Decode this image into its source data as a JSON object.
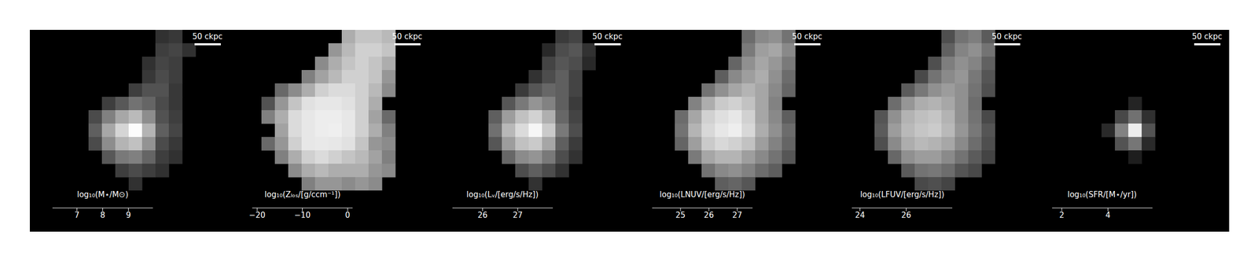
{
  "chart_data": [
    {
      "type": "heatmap",
      "tick_labels": false,
      "annotation": "50 ckpc",
      "colorbar_label": "log₁₀(M⋆/M⊙)",
      "colorbar_range": [
        6.05,
        9.95
      ],
      "colorbar_ticks": [
        7,
        8,
        9
      ],
      "cells": [
        [
          null,
          null,
          null,
          null,
          null,
          null,
          null,
          6.8,
          6.9,
          null,
          null,
          null
        ],
        [
          null,
          null,
          null,
          null,
          null,
          null,
          null,
          7.0,
          7.1,
          6.8,
          null,
          null
        ],
        [
          null,
          null,
          null,
          null,
          null,
          null,
          6.8,
          7.1,
          7.0,
          null,
          null,
          null
        ],
        [
          null,
          null,
          null,
          null,
          null,
          null,
          6.9,
          7.2,
          7.0,
          null,
          null,
          null
        ],
        [
          null,
          null,
          null,
          null,
          null,
          7.0,
          7.3,
          7.3,
          6.9,
          null,
          null,
          null
        ],
        [
          null,
          null,
          null,
          7.0,
          7.4,
          7.8,
          7.6,
          7.2,
          6.9,
          null,
          null,
          null
        ],
        [
          null,
          null,
          7.2,
          8.0,
          8.6,
          8.9,
          8.2,
          7.3,
          7.0,
          null,
          null,
          null
        ],
        [
          null,
          null,
          7.5,
          8.6,
          9.3,
          9.9,
          8.8,
          7.5,
          7.1,
          null,
          null,
          null
        ],
        [
          null,
          null,
          7.2,
          8.2,
          8.8,
          9.0,
          8.3,
          7.2,
          6.9,
          null,
          null,
          null
        ],
        [
          null,
          null,
          null,
          7.4,
          7.9,
          8.0,
          7.6,
          7.0,
          6.8,
          null,
          null,
          null
        ],
        [
          null,
          null,
          null,
          null,
          7.0,
          7.2,
          7.0,
          6.8,
          null,
          null,
          null,
          null
        ],
        [
          null,
          null,
          null,
          null,
          null,
          6.8,
          null,
          null,
          null,
          null,
          null,
          null
        ]
      ]
    },
    {
      "type": "heatmap",
      "tick_labels": false,
      "annotation": "50 ckpc",
      "colorbar_label": "log₁₀(Zₗₒₛ/[g/ccm⁻¹])",
      "colorbar_range": [
        -21.1,
        1.1
      ],
      "colorbar_ticks": [
        {
          "value": -20,
          "label": "−20"
        },
        {
          "value": -10,
          "label": "−10"
        },
        0
      ],
      "cells": [
        [
          null,
          null,
          null,
          null,
          null,
          null,
          -6,
          -4,
          -4,
          -5,
          null,
          null
        ],
        [
          null,
          null,
          null,
          null,
          null,
          -8,
          -5,
          -3,
          -3,
          -4,
          null,
          null
        ],
        [
          null,
          null,
          null,
          null,
          -9,
          -6,
          -4,
          -3,
          -4,
          -6,
          null,
          null
        ],
        [
          null,
          null,
          null,
          -10,
          -7,
          -5,
          -3,
          -3,
          -4,
          -8,
          null,
          null
        ],
        [
          null,
          -12,
          -9,
          -6,
          -3,
          -2,
          -2,
          -3,
          -5,
          -9,
          null,
          null
        ],
        [
          -14,
          -8,
          -4,
          -1.5,
          -1,
          -1,
          -1.5,
          -3,
          -6,
          null,
          null,
          null
        ],
        [
          -10,
          -6,
          -2,
          -1,
          -0.5,
          -0.5,
          -1,
          -3,
          -7,
          -12,
          null,
          null
        ],
        [
          null,
          -7,
          -2,
          -1,
          -0.5,
          -0.3,
          -1,
          -3,
          -6,
          -10,
          null,
          null
        ],
        [
          -12,
          -8,
          -3,
          -1,
          -0.8,
          -1,
          -1.5,
          -4,
          -8,
          -9,
          null,
          null
        ],
        [
          null,
          -10,
          -6,
          -3,
          -2,
          -3,
          -4,
          -5,
          -7,
          -10,
          null,
          null
        ],
        [
          null,
          null,
          -9,
          -6,
          -5,
          -6,
          -6,
          -6,
          -8,
          -9,
          null,
          null
        ],
        [
          null,
          null,
          null,
          -10,
          -8,
          -8,
          -9,
          -8,
          -9,
          null,
          null,
          null
        ]
      ]
    },
    {
      "type": "heatmap",
      "tick_labels": false,
      "annotation": "50 ckpc",
      "colorbar_label": "log₁₀(Lᵥ/[erg/s/Hz])",
      "colorbar_range": [
        25.14,
        28.0
      ],
      "colorbar_ticks": [
        26,
        27
      ],
      "cells": [
        [
          null,
          null,
          null,
          null,
          null,
          null,
          null,
          25.8,
          25.9,
          null,
          null,
          null
        ],
        [
          null,
          null,
          null,
          null,
          null,
          null,
          25.6,
          26.0,
          26.1,
          25.7,
          null,
          null
        ],
        [
          null,
          null,
          null,
          null,
          null,
          null,
          25.9,
          26.1,
          26.0,
          25.6,
          null,
          null
        ],
        [
          null,
          null,
          null,
          null,
          null,
          25.7,
          26.0,
          26.2,
          25.9,
          null,
          null,
          null
        ],
        [
          null,
          null,
          null,
          null,
          25.8,
          26.1,
          26.3,
          26.2,
          25.9,
          null,
          null,
          null
        ],
        [
          null,
          null,
          null,
          26.1,
          26.5,
          26.8,
          26.6,
          26.2,
          25.8,
          null,
          null,
          null
        ],
        [
          null,
          null,
          26.2,
          26.9,
          27.3,
          27.5,
          27.1,
          26.3,
          25.9,
          null,
          null,
          null
        ],
        [
          null,
          null,
          26.4,
          27.2,
          27.6,
          27.9,
          27.4,
          26.5,
          26.0,
          null,
          null,
          null
        ],
        [
          null,
          null,
          26.1,
          26.9,
          27.3,
          27.4,
          27.0,
          26.2,
          25.8,
          null,
          null,
          null
        ],
        [
          null,
          null,
          null,
          26.3,
          26.7,
          26.8,
          26.5,
          26.0,
          25.7,
          null,
          null,
          null
        ],
        [
          null,
          null,
          null,
          null,
          26.0,
          26.2,
          26.0,
          25.7,
          null,
          null,
          null,
          null
        ],
        [
          null,
          null,
          null,
          null,
          null,
          25.7,
          null,
          null,
          null,
          null,
          null,
          null
        ]
      ]
    },
    {
      "type": "heatmap",
      "tick_labels": false,
      "annotation": "50 ckpc",
      "colorbar_label": "log₁₀(LNUV/[erg/s/Hz])",
      "colorbar_range": [
        24.0,
        27.54
      ],
      "colorbar_ticks": [
        25,
        26,
        27
      ],
      "cells": [
        [
          null,
          null,
          null,
          null,
          null,
          null,
          25.5,
          25.9,
          26.0,
          25.6,
          null,
          null
        ],
        [
          null,
          null,
          null,
          null,
          null,
          null,
          25.7,
          26.2,
          26.3,
          25.9,
          null,
          null
        ],
        [
          null,
          null,
          null,
          null,
          null,
          25.4,
          26.0,
          26.3,
          26.1,
          25.7,
          null,
          null
        ],
        [
          null,
          null,
          null,
          null,
          25.3,
          25.9,
          26.2,
          26.4,
          26.0,
          25.5,
          null,
          null
        ],
        [
          null,
          null,
          null,
          25.6,
          26.0,
          26.3,
          26.5,
          26.3,
          25.9,
          25.4,
          null,
          null
        ],
        [
          null,
          null,
          25.8,
          26.4,
          26.8,
          26.9,
          26.7,
          26.3,
          25.8,
          null,
          null,
          null
        ],
        [
          null,
          25.5,
          26.3,
          26.9,
          27.1,
          27.2,
          26.9,
          26.3,
          25.9,
          25.3,
          null,
          null
        ],
        [
          null,
          25.6,
          26.5,
          27.0,
          27.2,
          27.3,
          27.0,
          26.4,
          26.0,
          25.5,
          null,
          null
        ],
        [
          null,
          25.4,
          26.2,
          26.8,
          27.0,
          26.9,
          26.7,
          26.2,
          25.8,
          25.4,
          null,
          null
        ],
        [
          null,
          null,
          25.7,
          26.3,
          26.5,
          26.5,
          26.2,
          25.9,
          25.6,
          25.2,
          null,
          null
        ],
        [
          null,
          null,
          null,
          25.6,
          25.9,
          26.0,
          25.8,
          25.5,
          25.3,
          null,
          null,
          null
        ],
        [
          null,
          null,
          null,
          null,
          25.3,
          25.4,
          25.2,
          null,
          null,
          null,
          null,
          null
        ]
      ]
    },
    {
      "type": "heatmap",
      "tick_labels": false,
      "annotation": "50 ckpc",
      "colorbar_label": "log₁₀(LFUV/[erg/s/Hz])",
      "colorbar_range": [
        23.65,
        27.99
      ],
      "colorbar_ticks": [
        24,
        26
      ],
      "cells": [
        [
          null,
          null,
          null,
          null,
          null,
          null,
          25.0,
          25.6,
          25.8,
          25.2,
          null,
          null
        ],
        [
          null,
          null,
          null,
          null,
          null,
          null,
          25.3,
          25.9,
          26.1,
          25.6,
          null,
          null
        ],
        [
          null,
          null,
          null,
          null,
          null,
          25.0,
          25.8,
          26.1,
          25.9,
          25.3,
          null,
          null
        ],
        [
          null,
          null,
          null,
          null,
          24.9,
          25.6,
          26.0,
          26.2,
          25.7,
          25.1,
          null,
          null
        ],
        [
          null,
          null,
          null,
          25.2,
          25.7,
          26.1,
          26.3,
          26.1,
          25.6,
          25.0,
          null,
          null
        ],
        [
          null,
          null,
          25.5,
          26.2,
          26.6,
          26.7,
          26.5,
          26.1,
          25.5,
          null,
          null,
          null
        ],
        [
          null,
          25.1,
          26.1,
          26.7,
          26.9,
          27.0,
          26.7,
          26.1,
          25.6,
          24.9,
          null,
          null
        ],
        [
          null,
          25.2,
          26.3,
          26.8,
          27.0,
          27.1,
          26.8,
          26.2,
          25.7,
          25.1,
          null,
          null
        ],
        [
          null,
          25.0,
          26.0,
          26.6,
          26.8,
          26.7,
          26.5,
          26.0,
          25.5,
          25.0,
          null,
          null
        ],
        [
          null,
          null,
          25.4,
          26.1,
          26.3,
          26.3,
          26.0,
          25.6,
          25.2,
          24.8,
          null,
          null
        ],
        [
          null,
          null,
          null,
          25.2,
          25.6,
          25.7,
          25.5,
          25.1,
          24.9,
          null,
          null,
          null
        ],
        [
          null,
          null,
          null,
          null,
          24.9,
          25.0,
          24.8,
          null,
          null,
          null,
          null,
          null
        ]
      ]
    },
    {
      "type": "heatmap",
      "tick_labels": false,
      "annotation": "50 ckpc",
      "colorbar_label": "log₁₀(SFR/[M⋆/yr])",
      "colorbar_range": [
        1.58,
        5.93
      ],
      "colorbar_ticks": [
        2,
        4
      ],
      "cells": [
        [
          null,
          null,
          null,
          null,
          null,
          null,
          null,
          null,
          null,
          null,
          null,
          null
        ],
        [
          null,
          null,
          null,
          null,
          null,
          null,
          null,
          null,
          null,
          null,
          null,
          null
        ],
        [
          null,
          null,
          null,
          null,
          null,
          null,
          null,
          null,
          null,
          null,
          null,
          null
        ],
        [
          null,
          null,
          null,
          null,
          null,
          null,
          null,
          null,
          null,
          null,
          null,
          null
        ],
        [
          null,
          null,
          null,
          null,
          null,
          null,
          null,
          null,
          null,
          null,
          null,
          null
        ],
        [
          null,
          null,
          null,
          null,
          null,
          2.2,
          null,
          null,
          null,
          null,
          null,
          null
        ],
        [
          null,
          null,
          null,
          null,
          2.8,
          3.5,
          2.4,
          null,
          null,
          null,
          null,
          null
        ],
        [
          null,
          null,
          null,
          2.3,
          3.8,
          5.6,
          3.0,
          null,
          null,
          null,
          null,
          null
        ],
        [
          null,
          null,
          null,
          null,
          3.0,
          3.6,
          2.3,
          null,
          null,
          null,
          null,
          null
        ],
        [
          null,
          null,
          null,
          null,
          null,
          2.1,
          null,
          null,
          null,
          null,
          null,
          null
        ],
        [
          null,
          null,
          null,
          null,
          null,
          null,
          null,
          null,
          null,
          null,
          null,
          null
        ],
        [
          null,
          null,
          null,
          null,
          null,
          null,
          null,
          null,
          null,
          null,
          null,
          null
        ]
      ]
    }
  ]
}
